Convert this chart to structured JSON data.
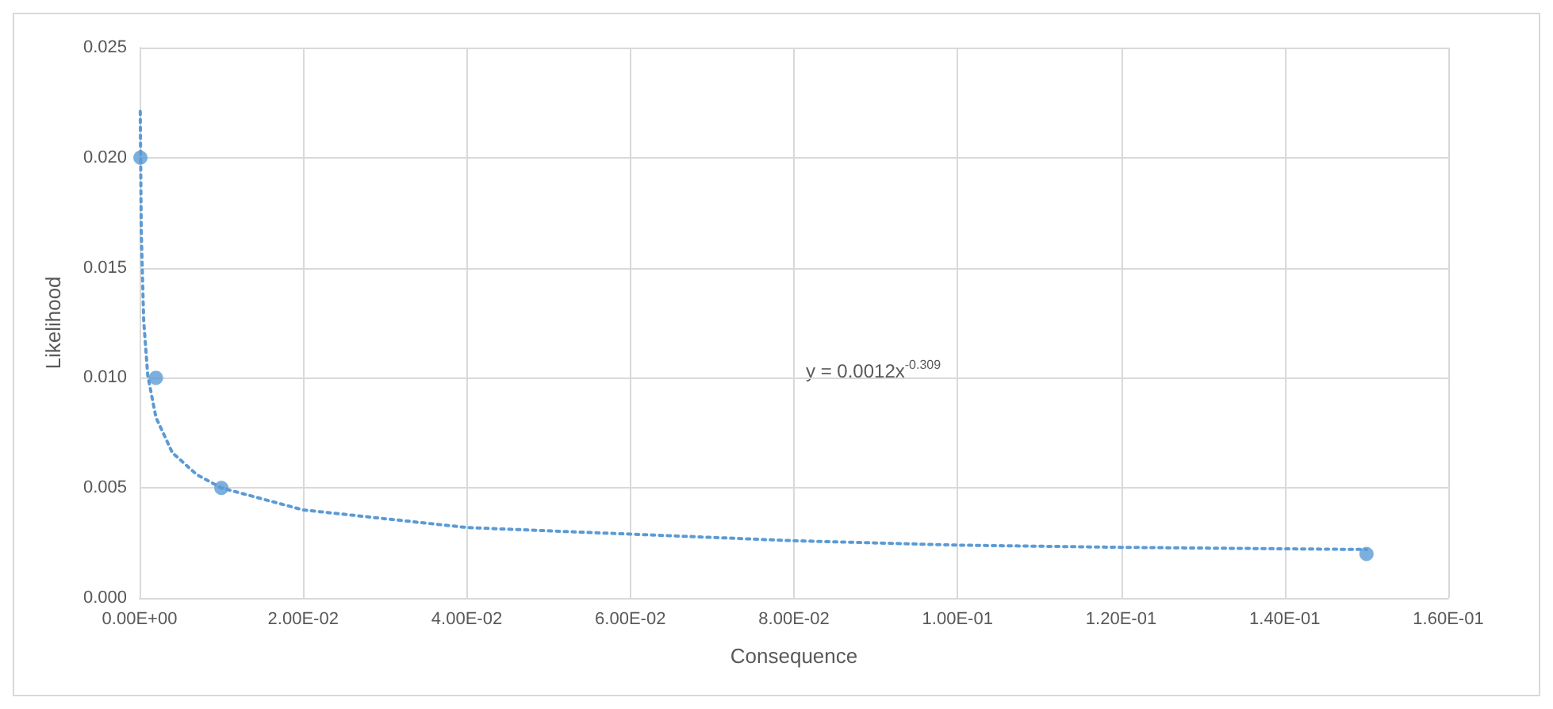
{
  "chart_data": {
    "type": "scatter",
    "xlabel": "Consequence",
    "ylabel": "Likelihood",
    "xlim": [
      0,
      0.16
    ],
    "ylim": [
      0,
      0.025
    ],
    "xticks": [
      {
        "value": 0,
        "label": "0.00E+00"
      },
      {
        "value": 0.02,
        "label": "2.00E-02"
      },
      {
        "value": 0.04,
        "label": "4.00E-02"
      },
      {
        "value": 0.06,
        "label": "6.00E-02"
      },
      {
        "value": 0.08,
        "label": "8.00E-02"
      },
      {
        "value": 0.1,
        "label": "1.00E-01"
      },
      {
        "value": 0.12,
        "label": "1.20E-01"
      },
      {
        "value": 0.14,
        "label": "1.40E-01"
      },
      {
        "value": 0.16,
        "label": "1.60E-01"
      }
    ],
    "yticks": [
      {
        "value": 0,
        "label": "0.000"
      },
      {
        "value": 0.005,
        "label": "0.005"
      },
      {
        "value": 0.01,
        "label": "0.010"
      },
      {
        "value": 0.015,
        "label": "0.015"
      },
      {
        "value": 0.02,
        "label": "0.020"
      },
      {
        "value": 0.025,
        "label": "0.025"
      }
    ],
    "grid": true,
    "series": [
      {
        "color": "#5b9bd5",
        "marker": "circle",
        "x": [
          0.0001,
          0.002,
          0.01,
          0.15
        ],
        "values": [
          0.02,
          0.01,
          0.005,
          0.002
        ]
      },
      {
        "type": "line",
        "color": "#5b9bd5",
        "marker": "none",
        "line_style": "dotted",
        "x": [
          8e-05,
          0.0002,
          0.0005,
          0.001,
          0.002,
          0.004,
          0.007,
          0.01,
          0.02,
          0.04,
          0.06,
          0.08,
          0.1,
          0.12,
          0.15
        ],
        "values": [
          0.0221,
          0.0167,
          0.0126,
          0.0101,
          0.0082,
          0.0066,
          0.0056,
          0.005,
          0.004,
          0.0032,
          0.0029,
          0.0026,
          0.0024,
          0.0023,
          0.0022
        ]
      }
    ],
    "annotations": [
      "y = 0.0012x$^{-0.309}$"
    ]
  }
}
